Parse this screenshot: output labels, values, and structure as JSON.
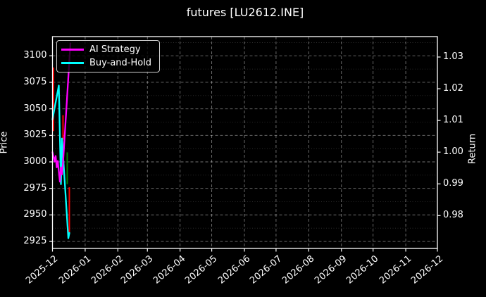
{
  "window": {
    "background": "#000000"
  },
  "chart_data": {
    "type": "line",
    "title": "futures [LU2612.INE]",
    "ylabel": "Price",
    "ylabel_right": "Return",
    "grid": true,
    "legend_position": "upper left",
    "colors": {
      "foreground": "#ffffff",
      "grid_major": "rgba(255,255,255,0.45)",
      "grid_minor": "rgba(255,255,255,0.20)",
      "bar_down": "#ff0000",
      "bar_up": "#008000"
    },
    "x_axis": {
      "start": "2025-12-01",
      "end": "2026-12-01",
      "tick_labels": [
        "2025-12",
        "2026-01",
        "2026-02",
        "2026-03",
        "2026-04",
        "2026-05",
        "2026-06",
        "2026-07",
        "2026-08",
        "2026-09",
        "2026-10",
        "2026-11",
        "2026-12"
      ]
    },
    "y_left": {
      "label": "Price",
      "min": 2918.4,
      "max": 3118.1,
      "ticks": [
        2925,
        2950,
        2975,
        3000,
        3025,
        3050,
        3075,
        3100
      ],
      "minor_step": 12.5
    },
    "y_right": {
      "label": "Return",
      "min": 0.96963,
      "max": 1.03644,
      "ticks": [
        0.98,
        0.99,
        1.0,
        1.01,
        1.02,
        1.03
      ]
    },
    "series": [
      {
        "name": "AI Strategy",
        "color": "#ff00ff",
        "axis": "right",
        "points": [
          {
            "date": "2025-12-01",
            "value": 1.0
          },
          {
            "date": "2025-12-03",
            "value": 0.997
          },
          {
            "date": "2025-12-04",
            "value": 0.9988
          },
          {
            "date": "2025-12-05",
            "value": 0.9952
          },
          {
            "date": "2025-12-06",
            "value": 0.9972
          },
          {
            "date": "2025-12-08",
            "value": 0.9907
          },
          {
            "date": "2025-12-09",
            "value": 0.9952
          },
          {
            "date": "2025-12-10",
            "value": 0.993
          },
          {
            "date": "2025-12-11",
            "value": 0.9967
          },
          {
            "date": "2025-12-18",
            "value": 1.0343
          }
        ]
      },
      {
        "name": "Buy-and-Hold",
        "color": "#00ffff",
        "axis": "left",
        "points": [
          {
            "date": "2025-12-01",
            "value": 3040
          },
          {
            "date": "2025-12-07",
            "value": 3072
          },
          {
            "date": "2025-12-09",
            "value": 2979
          },
          {
            "date": "2025-12-10",
            "value": 3022
          },
          {
            "date": "2025-12-16",
            "value": 2928
          },
          {
            "date": "2025-12-17",
            "value": 2933
          }
        ]
      }
    ],
    "price_bars": [
      {
        "date": "2025-12-02",
        "high": 3089,
        "low": 3029,
        "direction": "down"
      },
      {
        "date": "2025-12-11",
        "high": 3044,
        "low": 3021,
        "direction": "down"
      },
      {
        "date": "2025-12-15",
        "high": 3009,
        "low": 2979,
        "direction": "up"
      },
      {
        "date": "2025-12-17",
        "high": 2976,
        "low": 2933,
        "direction": "down"
      }
    ]
  }
}
